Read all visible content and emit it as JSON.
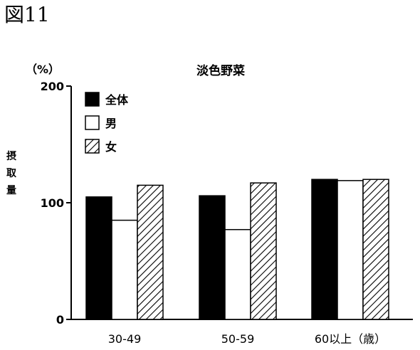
{
  "figure_label": "図11",
  "chart_data": {
    "type": "bar",
    "title": "淡色野菜",
    "unit": "（%）",
    "ylabel": "摂取量",
    "xlabel": "",
    "categories": [
      "30-49",
      "50-59",
      "60以上（歳）"
    ],
    "ylim": [
      0,
      200
    ],
    "yticks": [
      0,
      100,
      200
    ],
    "grid": false,
    "legend_position": "top-left",
    "series": [
      {
        "name": "全体",
        "values": [
          105,
          106,
          120
        ],
        "fill": "solid"
      },
      {
        "name": "男",
        "values": [
          85,
          77,
          119
        ],
        "fill": "white"
      },
      {
        "name": "女",
        "values": [
          115,
          117,
          120
        ],
        "fill": "hatch"
      }
    ]
  }
}
